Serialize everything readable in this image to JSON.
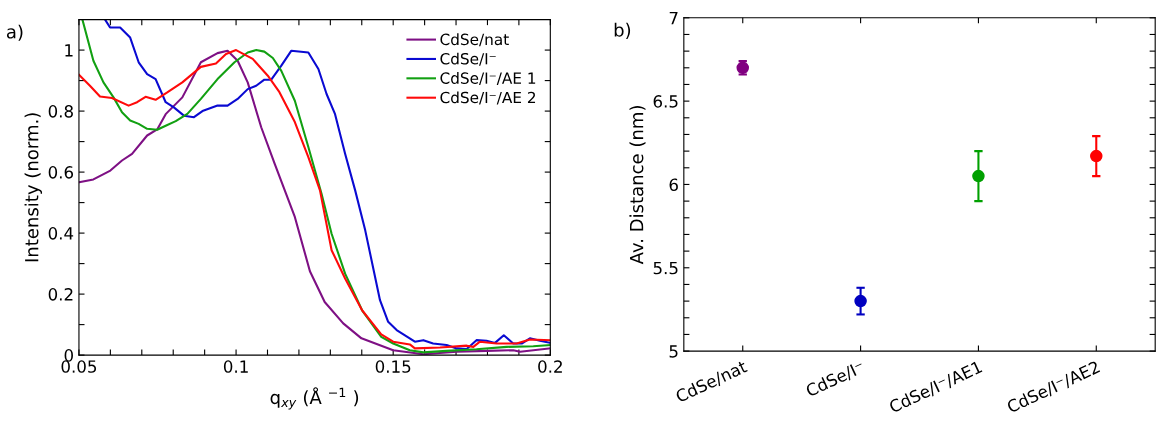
{
  "chart_data": [
    {
      "type": "line",
      "annotations": [
        "a)"
      ],
      "xlabel": "q$_{xy}$ (Å $^{−1}$ )",
      "ylabel": "Intensity (norm.)",
      "xlim": [
        0.05,
        0.2
      ],
      "ylim": [
        0,
        1.1
      ],
      "xticks": [
        0.05,
        {
          "value": 0.06,
          "label": null
        },
        {
          "value": 0.07,
          "label": null
        },
        {
          "value": 0.08,
          "label": null
        },
        {
          "value": 0.09,
          "label": null
        },
        0.1,
        {
          "value": 0.11,
          "label": null
        },
        {
          "value": 0.12,
          "label": null
        },
        {
          "value": 0.13,
          "label": null
        },
        {
          "value": 0.14,
          "label": null
        },
        0.15,
        {
          "value": 0.16,
          "label": null
        },
        {
          "value": 0.17,
          "label": null
        },
        {
          "value": 0.18,
          "label": null
        },
        {
          "value": 0.19,
          "label": null
        },
        0.2
      ],
      "yticks": [
        0,
        {
          "value": 0.1,
          "label": null
        },
        0.2,
        {
          "value": 0.3,
          "label": null
        },
        0.4,
        {
          "value": 0.5,
          "label": null
        },
        0.6,
        {
          "value": 0.7,
          "label": null
        },
        0.8,
        {
          "value": 0.9,
          "label": null
        },
        1
      ],
      "legend": "top right",
      "grid": false,
      "series": [
        {
          "name": "CdSe/nat",
          "color": "#7e1084",
          "x": [
            0.05,
            0.0546,
            0.06,
            0.0637,
            0.0669,
            0.0717,
            0.0749,
            0.0776,
            0.0829,
            0.0888,
            0.0941,
            0.0973,
            0.1005,
            0.1037,
            0.108,
            0.1123,
            0.1187,
            0.1235,
            0.1282,
            0.1341,
            0.1399,
            0.15,
            0.1596,
            0.1702,
            0.1797,
            0.1882,
            0.1904,
            0.2
          ],
          "values": [
            0.567,
            0.576,
            0.605,
            0.638,
            0.66,
            0.72,
            0.74,
            0.79,
            0.845,
            0.96,
            0.99,
            0.998,
            0.965,
            0.894,
            0.747,
            0.627,
            0.453,
            0.275,
            0.174,
            0.104,
            0.055,
            0.016,
            0.003,
            0.011,
            0.014,
            0.016,
            0.011,
            0.022
          ]
        },
        {
          "name": "CdSe/I⁻",
          "color": "#0a0ad2",
          "x": [
            0.0583,
            0.0599,
            0.0631,
            0.0663,
            0.069,
            0.0717,
            0.0744,
            0.0776,
            0.0802,
            0.0834,
            0.0866,
            0.0893,
            0.0941,
            0.0973,
            0.1005,
            0.1037,
            0.1064,
            0.109,
            0.1112,
            0.1144,
            0.1176,
            0.123,
            0.1262,
            0.1288,
            0.1315,
            0.1347,
            0.1379,
            0.1411,
            0.1458,
            0.1484,
            0.1511,
            0.1569,
            0.1596,
            0.1627,
            0.167,
            0.1702,
            0.1734,
            0.1765,
            0.1797,
            0.1824,
            0.1852,
            0.1882,
            0.1909,
            0.1935,
            0.1967,
            0.2
          ],
          "values": [
            1.1,
            1.074,
            1.074,
            1.041,
            0.96,
            0.921,
            0.905,
            0.829,
            0.812,
            0.785,
            0.78,
            0.8,
            0.818,
            0.818,
            0.84,
            0.872,
            0.883,
            0.903,
            0.903,
            0.949,
            0.998,
            0.992,
            0.938,
            0.856,
            0.79,
            0.66,
            0.54,
            0.409,
            0.18,
            0.109,
            0.082,
            0.044,
            0.049,
            0.038,
            0.033,
            0.022,
            0.02,
            0.049,
            0.047,
            0.04,
            0.065,
            0.038,
            0.038,
            0.055,
            0.047,
            0.04
          ]
        },
        {
          "name": "CdSe/I⁻/AE 1",
          "color": "#12a012",
          "x": [
            0.0511,
            0.0546,
            0.0578,
            0.061,
            0.0637,
            0.0663,
            0.069,
            0.0717,
            0.0749,
            0.0776,
            0.0808,
            0.0845,
            0.0888,
            0.0941,
            0.0995,
            0.1037,
            0.1064,
            0.109,
            0.1117,
            0.1144,
            0.1187,
            0.123,
            0.1272,
            0.1304,
            0.1347,
            0.1401,
            0.1462,
            0.15,
            0.1553,
            0.1596,
            0.167,
            0.1765,
            0.1861,
            0.1946,
            0.2
          ],
          "values": [
            1.1,
            0.965,
            0.894,
            0.845,
            0.796,
            0.769,
            0.758,
            0.742,
            0.739,
            0.752,
            0.767,
            0.791,
            0.84,
            0.905,
            0.96,
            0.992,
            1.0,
            0.995,
            0.974,
            0.932,
            0.834,
            0.682,
            0.529,
            0.398,
            0.267,
            0.147,
            0.06,
            0.038,
            0.016,
            0.009,
            0.014,
            0.019,
            0.027,
            0.029,
            0.033
          ]
        },
        {
          "name": "CdSe/I⁻/AE 2",
          "color": "#ff0a0a",
          "x": [
            0.05,
            0.0535,
            0.0567,
            0.0605,
            0.0658,
            0.0685,
            0.0712,
            0.0744,
            0.0781,
            0.0829,
            0.0888,
            0.0936,
            0.0968,
            0.1,
            0.1053,
            0.1101,
            0.1138,
            0.1187,
            0.123,
            0.1267,
            0.1304,
            0.1347,
            0.1401,
            0.1462,
            0.15,
            0.1553,
            0.1569,
            0.1649,
            0.1734,
            0.1755,
            0.1776,
            0.1829,
            0.1893,
            0.1935,
            0.2
          ],
          "values": [
            0.919,
            0.883,
            0.848,
            0.843,
            0.818,
            0.829,
            0.847,
            0.837,
            0.861,
            0.894,
            0.945,
            0.956,
            0.987,
            1.0,
            0.971,
            0.916,
            0.862,
            0.764,
            0.649,
            0.54,
            0.344,
            0.251,
            0.147,
            0.068,
            0.044,
            0.035,
            0.022,
            0.025,
            0.031,
            0.027,
            0.044,
            0.038,
            0.038,
            0.051,
            0.049
          ]
        }
      ]
    },
    {
      "type": "scatter",
      "annotations": [
        "b)"
      ],
      "ylabel": "Av. Distance (nm)",
      "categories": [
        "CdSe/nat",
        "CdSe/I⁻",
        "CdSe/I⁻/AE1",
        "CdSe/I⁻/AE2"
      ],
      "ylim": [
        5,
        7
      ],
      "yticks": [
        5,
        {
          "value": 5.1,
          "label": null
        },
        {
          "value": 5.2,
          "label": null
        },
        {
          "value": 5.3,
          "label": null
        },
        {
          "value": 5.4,
          "label": null
        },
        5.5,
        {
          "value": 5.6,
          "label": null
        },
        {
          "value": 5.7,
          "label": null
        },
        {
          "value": 5.8,
          "label": null
        },
        {
          "value": 5.9,
          "label": null
        },
        6,
        {
          "value": 6.1,
          "label": null
        },
        {
          "value": 6.2,
          "label": null
        },
        {
          "value": 6.3,
          "label": null
        },
        {
          "value": 6.4,
          "label": null
        },
        6.5,
        {
          "value": 6.6,
          "label": null
        },
        {
          "value": 6.7,
          "label": null
        },
        {
          "value": 6.8,
          "label": null
        },
        {
          "value": 6.9,
          "label": null
        },
        7
      ],
      "legend": false,
      "grid": false,
      "marker": "circle",
      "values": [
        6.7,
        5.3,
        6.05,
        6.17
      ],
      "colors": [
        "#800080",
        "#0000c0",
        "#00a000",
        "#ff0000"
      ],
      "errors": [
        0.04,
        0.08,
        0.15,
        [
          6.05,
          6.29
        ]
      ]
    }
  ]
}
